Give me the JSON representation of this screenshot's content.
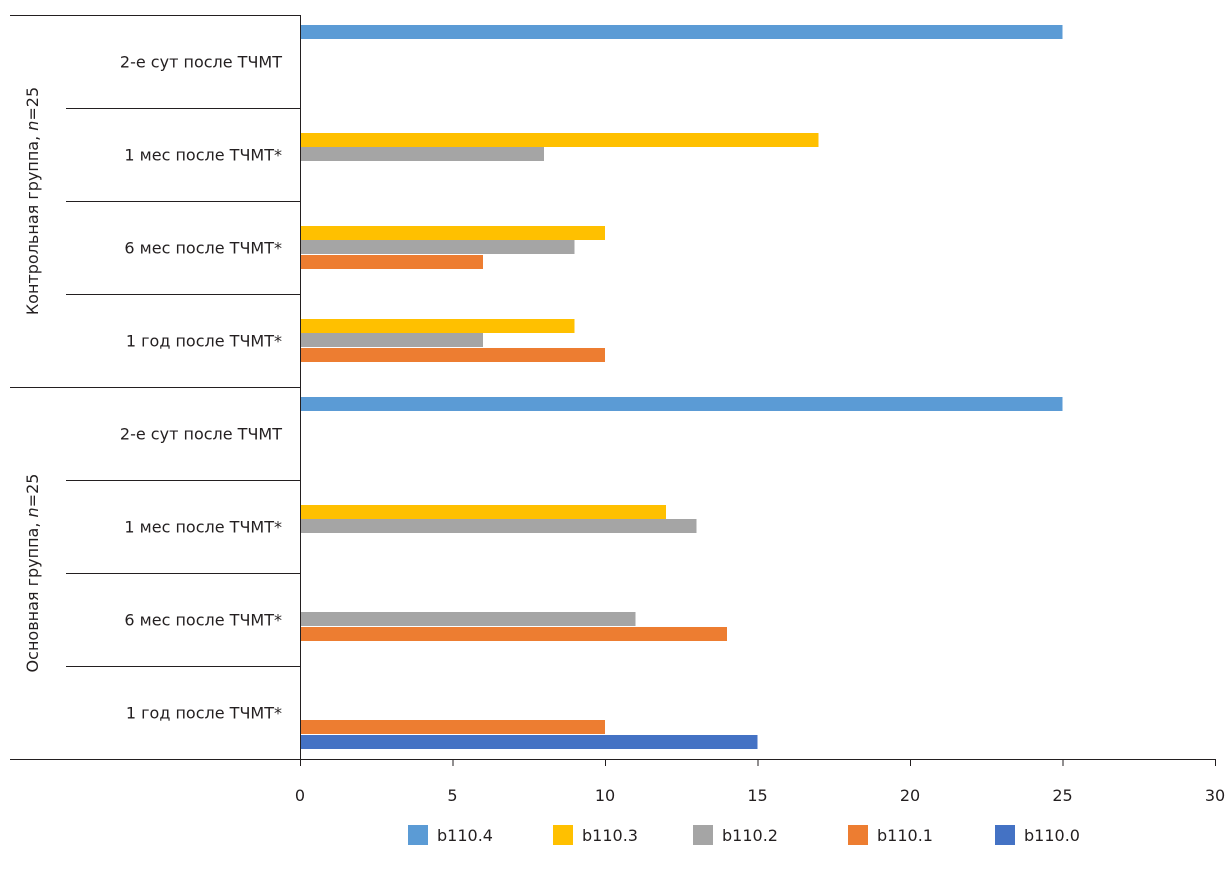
{
  "chart_data": {
    "type": "bar",
    "orientation": "horizontal",
    "xlim": [
      0,
      30
    ],
    "x_ticks": [
      "0",
      "5",
      "10",
      "15",
      "20",
      "25",
      "30"
    ],
    "x_tick_values": [
      0,
      5,
      10,
      15,
      20,
      25,
      30
    ],
    "grid": false,
    "legend_position": "bottom",
    "groups": [
      {
        "label": "Контрольная группа, n=25",
        "label_main": "Контрольная группа, ",
        "label_n": "n",
        "label_tail": "=25",
        "categories": [
          {
            "label": "2-е сут после ТЧМТ",
            "bars": [
              {
                "series": "b110.4",
                "value": 25
              }
            ]
          },
          {
            "label": "1 мес после ТЧМТ*",
            "bars": [
              {
                "series": "b110.3",
                "value": 17
              },
              {
                "series": "b110.2",
                "value": 8
              }
            ]
          },
          {
            "label": "6 мес после ТЧМТ*",
            "bars": [
              {
                "series": "b110.3",
                "value": 10
              },
              {
                "series": "b110.2",
                "value": 9
              },
              {
                "series": "b110.1",
                "value": 6
              }
            ]
          },
          {
            "label": "1 год после ТЧМТ*",
            "bars": [
              {
                "series": "b110.3",
                "value": 9
              },
              {
                "series": "b110.2",
                "value": 6
              },
              {
                "series": "b110.1",
                "value": 10
              }
            ]
          }
        ]
      },
      {
        "label": "Основная группа, n=25",
        "label_main": "Основная группа, ",
        "label_n": "n",
        "label_tail": "=25",
        "categories": [
          {
            "label": "2-е сут после ТЧМТ",
            "bars": [
              {
                "series": "b110.4",
                "value": 25
              }
            ]
          },
          {
            "label": "1 мес после ТЧМТ*",
            "bars": [
              {
                "series": "b110.3",
                "value": 12
              },
              {
                "series": "b110.2",
                "value": 13
              }
            ]
          },
          {
            "label": "6 мес после ТЧМТ*",
            "bars": [
              {
                "series": "b110.2",
                "value": 11
              },
              {
                "series": "b110.1",
                "value": 14
              }
            ]
          },
          {
            "label": "1 год после ТЧМТ*",
            "bars": [
              {
                "series": "b110.1",
                "value": 10
              },
              {
                "series": "b110.0",
                "value": 15
              }
            ]
          }
        ]
      }
    ],
    "series": [
      {
        "name": "b110.4",
        "color": "#5b9bd5"
      },
      {
        "name": "b110.3",
        "color": "#ffc000"
      },
      {
        "name": "b110.2",
        "color": "#a5a5a5"
      },
      {
        "name": "b110.1",
        "color": "#ed7d31"
      },
      {
        "name": "b110.0",
        "color": "#4472c4"
      }
    ]
  }
}
